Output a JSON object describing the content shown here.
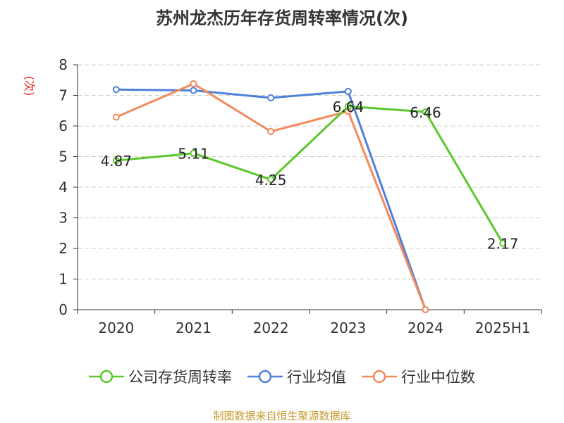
{
  "chart_data": {
    "type": "line",
    "title": "苏州龙杰历年存货周转率情况(次)",
    "ylabel": "(次)",
    "categories": [
      "2020",
      "2021",
      "2022",
      "2023",
      "2024",
      "2025H1"
    ],
    "ylim": [
      0,
      8
    ],
    "yticks": [
      0,
      1,
      2,
      3,
      4,
      5,
      6,
      7,
      8
    ],
    "grid": true,
    "legend_position": "bottom",
    "series": [
      {
        "name": "公司存货周转率",
        "color": "#5cc72c",
        "values": [
          4.87,
          5.11,
          4.25,
          6.64,
          6.46,
          2.17
        ],
        "labels": [
          "4.87",
          "5.11",
          "4.25",
          "6.64",
          "6.46",
          "2.17"
        ]
      },
      {
        "name": "行业均值",
        "color": "#4f80d9",
        "values": [
          7.19,
          7.16,
          6.92,
          7.13,
          0,
          null
        ]
      },
      {
        "name": "行业中位数",
        "color": "#f28a5c",
        "values": [
          6.29,
          7.38,
          5.82,
          6.48,
          0,
          null
        ]
      }
    ]
  },
  "source": "制图数据来自恒生聚源数据库"
}
